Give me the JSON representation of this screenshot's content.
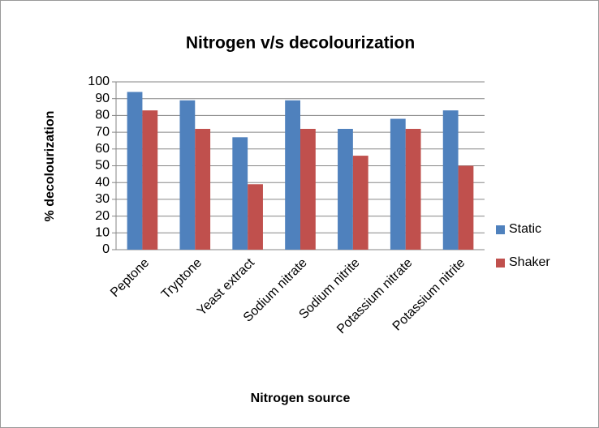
{
  "chart_data": {
    "type": "bar",
    "title": "Nitrogen v/s decolourization",
    "x_label": "Nitrogen source",
    "y_label": "% decolourization",
    "categories": [
      "Peptone",
      "Tryptone",
      "Yeast extract",
      "Sodium nitrate",
      "Sodium nitrite",
      "Potassium nitrate",
      "Potassium nitrite"
    ],
    "series": [
      {
        "name": "Static",
        "color": "#4f81bd",
        "values": [
          94,
          89,
          67,
          89,
          72,
          78,
          83
        ]
      },
      {
        "name": "Shaker",
        "color": "#c0504d",
        "values": [
          83,
          72,
          39,
          72,
          56,
          72,
          50
        ]
      }
    ],
    "ylim": [
      0,
      100
    ],
    "yticks": [
      0,
      10,
      20,
      30,
      40,
      50,
      60,
      70,
      80,
      90,
      100
    ],
    "grid": true,
    "legend": "right"
  }
}
